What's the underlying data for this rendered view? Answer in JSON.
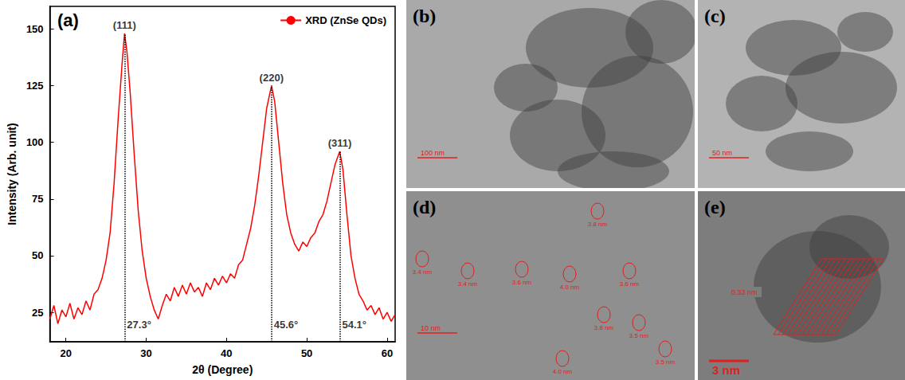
{
  "chart_data": {
    "type": "line",
    "panel_label": "(a)",
    "x_label": "2θ (Degree)",
    "y_label": "Intensity (Arb. unit)",
    "x": [
      18,
      18.5,
      19,
      19.5,
      20,
      20.5,
      21,
      21.5,
      22,
      22.5,
      23,
      23.5,
      24,
      24.5,
      25,
      25.5,
      26,
      26.5,
      27,
      27.3,
      27.6,
      28,
      28.5,
      29,
      29.5,
      30,
      30.5,
      31,
      31.5,
      32,
      32.5,
      33,
      33.5,
      34,
      34.5,
      35,
      35.5,
      36,
      36.5,
      37,
      37.5,
      38,
      38.5,
      39,
      39.5,
      40,
      40.5,
      41,
      41.5,
      42,
      42.5,
      43,
      43.5,
      44,
      44.5,
      45,
      45.6,
      46,
      46.5,
      47,
      47.5,
      48,
      48.5,
      49,
      49.5,
      50,
      50.5,
      51,
      51.5,
      52,
      52.5,
      53,
      53.5,
      54.1,
      54.5,
      55,
      55.5,
      56,
      56.5,
      57,
      57.5,
      58,
      58.5,
      59,
      59.5,
      60,
      60.5,
      61
    ],
    "series": [
      {
        "name": "XRD (ZnSe QDs)",
        "color": "#ff0000",
        "values": [
          22,
          28,
          20,
          26,
          23,
          29,
          22,
          27,
          24,
          30,
          26,
          33,
          35,
          40,
          48,
          60,
          82,
          110,
          135,
          148,
          140,
          122,
          95,
          70,
          52,
          40,
          32,
          26,
          22,
          28,
          33,
          30,
          36,
          32,
          37,
          33,
          38,
          34,
          36,
          32,
          38,
          35,
          40,
          37,
          41,
          38,
          42,
          40,
          46,
          48,
          55,
          62,
          72,
          85,
          100,
          115,
          125,
          118,
          100,
          82,
          68,
          60,
          55,
          52,
          56,
          54,
          58,
          60,
          65,
          68,
          74,
          82,
          90,
          96,
          88,
          68,
          50,
          40,
          33,
          30,
          26,
          28,
          24,
          27,
          22,
          25,
          21,
          24
        ]
      }
    ],
    "xlim": [
      18,
      61
    ],
    "xticks": [
      20,
      30,
      40,
      50,
      60
    ],
    "ylim": [
      12,
      160
    ],
    "yticks": [
      25,
      50,
      75,
      100,
      125,
      150
    ],
    "grid": false,
    "legend": "upper right",
    "peaks": [
      {
        "x": 27.3,
        "label": "27.3°",
        "plane": "(111)"
      },
      {
        "x": 45.6,
        "label": "45.6°",
        "plane": "(220)"
      },
      {
        "x": 54.1,
        "label": "54.1°",
        "plane": "(311)"
      }
    ]
  },
  "panels": [
    {
      "label": "(b)",
      "scale_bar": "100 nm"
    },
    {
      "label": "(c)",
      "scale_bar": "50 nm"
    },
    {
      "label": "(d)",
      "scale_bar": "10 nm",
      "particles": [
        "3.8 nm",
        "3.4 nm",
        "3.4 nm",
        "3.6 nm",
        "4.0 nm",
        "3.6 nm",
        "3.8 nm",
        "3.5 nm",
        "3.5 nm",
        "4.0 nm"
      ]
    },
    {
      "label": "(e)",
      "scale_bar": "3 nm",
      "fringe": "0.33 nm"
    }
  ]
}
